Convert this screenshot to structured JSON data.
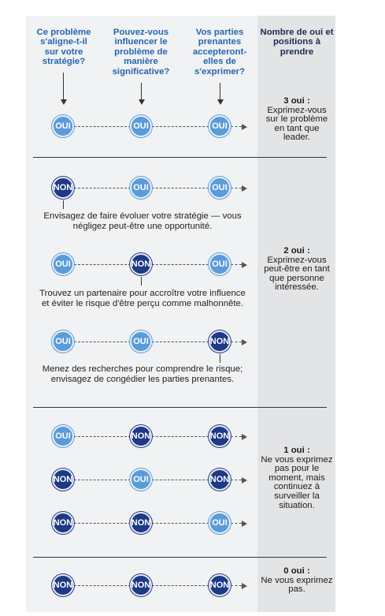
{
  "headers": {
    "col1": "Ce problème s'aligne-t-il sur votre stratégie?",
    "col2": "Pouvez-vous influencer le problème de manière significative?",
    "col3": "Vos parties prenantes accepteront-elles de s'exprimer?",
    "col4": "Nombre de oui et positions à prendre"
  },
  "labels": {
    "oui": "OUI",
    "non": "NON"
  },
  "rows": [
    [
      "OUI",
      "OUI",
      "OUI"
    ],
    [
      "NON",
      "OUI",
      "OUI"
    ],
    [
      "OUI",
      "NON",
      "OUI"
    ],
    [
      "OUI",
      "OUI",
      "NON"
    ],
    [
      "OUI",
      "NON",
      "NON"
    ],
    [
      "NON",
      "OUI",
      "NON"
    ],
    [
      "NON",
      "NON",
      "OUI"
    ],
    [
      "NON",
      "NON",
      "NON"
    ]
  ],
  "notes": {
    "row2": "Envisagez de faire évoluer votre stratégie — vous négligez peut-être une opportunité.",
    "row3": "Trouvez un partenaire pour accroître votre influence et éviter le risque d'être perçu comme malhonnête.",
    "row4": "Menez des recherches pour comprendre le risque; envisagez de congédier les parties prenantes."
  },
  "outcomes": {
    "three": {
      "count": "3 oui :",
      "text": "Exprimez-vous sur le problème en tant que leader."
    },
    "two": {
      "count": "2 oui :",
      "text": "Exprimez-vous peut-être en tant que personne intéressée."
    },
    "one": {
      "count": "1 oui :",
      "text": "Ne vous exprimez pas pour le moment, mais continuez à surveiller la situation."
    },
    "zero": {
      "count": "0 oui :",
      "text": "Ne vous exprimez pas."
    }
  },
  "colors": {
    "oui": "#5a9bd8",
    "non": "#1e3a86",
    "header": "#2466b0",
    "panel": "#f1f2f3",
    "outcome_column": "#e3e4e6"
  }
}
